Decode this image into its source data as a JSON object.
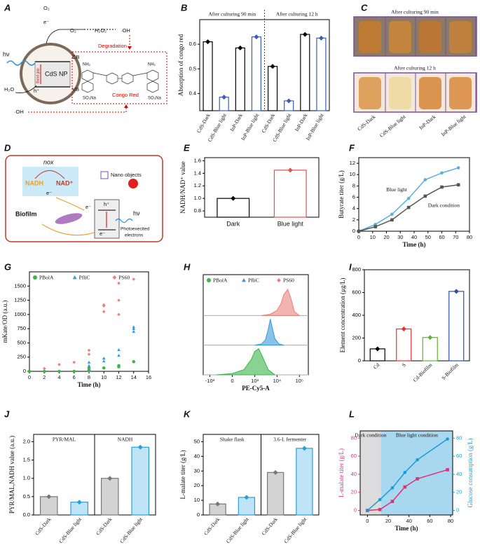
{
  "panel_labels": [
    "A",
    "B",
    "C",
    "D",
    "E",
    "F",
    "G",
    "H",
    "I",
    "J",
    "K",
    "L"
  ],
  "diagram_a": {
    "texts": [
      "O₂",
      "e⁻",
      "O₂⁻",
      "H₂O₂",
      "·OH",
      "hν",
      "CB",
      "CdS NP",
      "VB",
      "h⁺",
      "Band gap",
      "H₂O",
      "·OH",
      "Degradation",
      "Congo Red",
      "NH₂",
      "NH₂",
      "SO₃Na",
      "SO₃Na"
    ]
  },
  "photos_c": {
    "titles": [
      "After culturing 90 min",
      "After culturing 12 h"
    ],
    "labels": [
      "CdS-Dark",
      "CdS-Blue light",
      "InP-Dark",
      "InP-Blue light"
    ]
  },
  "diagram_d": {
    "texts": [
      "nox",
      "NADH",
      "NAD⁺",
      "e⁻",
      "Nano objects",
      "h⁺",
      "e⁻",
      "e⁻",
      "hν",
      "Biofilm",
      "Photoexecited",
      "electrons"
    ]
  },
  "chart_data": [
    {
      "type": "bar",
      "ylabel": "Absorption of congo red",
      "annotations": [
        "After culturing 90 min",
        "After culturing 12 h"
      ],
      "categories": [
        "CdS-Dark",
        "CdS-Blue light",
        "InP-Dark",
        "InP-Blue light",
        "CdS-Dark",
        "CdS-Blue light",
        "InP-Dark",
        "InP-Blue light"
      ],
      "values": [
        0.61,
        0.385,
        0.585,
        0.63,
        0.51,
        0.37,
        0.64,
        0.625
      ],
      "colors": [
        "#ffffff",
        "#ffffff",
        "#ffffff",
        "#ffffff",
        "#ffffff",
        "#ffffff",
        "#ffffff",
        "#ffffff"
      ],
      "edge_colors": [
        "#000000",
        "#3b5db5",
        "#000000",
        "#3b5db5",
        "#000000",
        "#3b5db5",
        "#000000",
        "#3b5db5"
      ],
      "ylim": [
        0.33,
        0.7
      ],
      "yticks": [
        0.4,
        0.5,
        0.6
      ]
    },
    {
      "type": "bar",
      "ylabel": "NADH/NAD⁺ value",
      "categories": [
        "Dark",
        "Blue light"
      ],
      "values": [
        1.0,
        1.45
      ],
      "colors": [
        "#ffffff",
        "#ffffff"
      ],
      "edge_colors": [
        "#000000",
        "#d9534f"
      ],
      "ylim": [
        0.7,
        1.65
      ],
      "yticks": [
        0.8,
        {
          "value": 1,
          "label": "1.0"
        },
        1.2,
        1.4,
        1.6
      ]
    },
    {
      "type": "line",
      "xlabel": "Time (h)",
      "ylabel": "Butyrate titer (g/L)",
      "x": [
        0,
        12,
        24,
        36,
        48,
        60,
        72
      ],
      "series": [
        {
          "name": "Blue light",
          "color": "#5aaee0",
          "values": [
            0,
            1.2,
            3,
            5.8,
            9.1,
            10.3,
            11.2
          ]
        },
        {
          "name": "Dark condition",
          "color": "#555555",
          "values": [
            0,
            0.8,
            2,
            4.2,
            6.2,
            7.8,
            8.2
          ]
        }
      ],
      "xlim": [
        0,
        80
      ],
      "xticks": [
        0,
        10,
        20,
        30,
        40,
        50,
        60,
        70,
        80
      ],
      "ylim": [
        0,
        13
      ],
      "yticks": [
        0,
        2,
        4,
        6,
        8,
        10,
        12
      ]
    },
    {
      "type": "scatter",
      "xlabel": "Time (h)",
      "ylabel": "mKate/OD (a.u.)",
      "series": [
        {
          "name": "PBolA",
          "color": "#3cb44b",
          "x": [
            0,
            2,
            4,
            6,
            8,
            8,
            10,
            12,
            12,
            14
          ],
          "values": [
            0,
            0,
            0,
            0,
            20,
            60,
            60,
            80,
            100,
            170
          ]
        },
        {
          "name": "PfliC",
          "color": "#3a9ad9",
          "x": [
            8,
            8,
            10,
            10,
            12,
            12,
            14,
            14,
            14
          ],
          "values": [
            100,
            160,
            180,
            230,
            280,
            380,
            700,
            750,
            780
          ]
        },
        {
          "name": "PS60",
          "color": "#e8827a",
          "x": [
            2,
            4,
            6,
            8,
            8,
            10,
            10,
            10,
            12,
            12,
            12,
            14
          ],
          "values": [
            50,
            120,
            160,
            300,
            370,
            1050,
            1150,
            1170,
            1000,
            1250,
            1550,
            1620
          ]
        }
      ],
      "xlim": [
        0,
        16
      ],
      "xticks": [
        0,
        2,
        4,
        6,
        8,
        10,
        12,
        14,
        16
      ],
      "ylim": [
        0,
        1750
      ],
      "yticks": [
        0,
        250,
        500,
        750,
        1000,
        1250,
        1500
      ]
    },
    {
      "type": "density",
      "xlabel": "PE-Cy5-A",
      "xscale": "biexponential",
      "xlim": [
        -2000,
        250000
      ],
      "xticks": [
        {
          "value": -1000,
          "label": "-10³"
        },
        0,
        {
          "value": 1000,
          "label": "10³"
        },
        {
          "value": 10000,
          "label": "10⁴"
        },
        {
          "value": 100000,
          "label": "10⁵"
        }
      ],
      "ylim": [
        0,
        100
      ],
      "series": [
        {
          "name": "PBolA",
          "color": "#3cb44b",
          "x": [
            -500,
            0,
            300,
            700,
            1000,
            1500,
            2500,
            4000,
            8000
          ],
          "values": [
            0,
            5,
            20,
            60,
            90,
            100,
            60,
            20,
            0
          ]
        },
        {
          "name": "PfliC",
          "color": "#3a9ad9",
          "x": [
            1000,
            2000,
            3000,
            4000,
            5000,
            6000,
            8000,
            12000,
            20000
          ],
          "values": [
            0,
            5,
            20,
            60,
            100,
            70,
            25,
            5,
            0
          ]
        },
        {
          "name": "PS60",
          "color": "#e8827a",
          "x": [
            2000,
            5000,
            10000,
            15000,
            20000,
            30000,
            40000,
            60000,
            100000
          ],
          "values": [
            0,
            5,
            20,
            45,
            80,
            100,
            70,
            15,
            0
          ]
        }
      ]
    },
    {
      "type": "bar",
      "ylabel": "Element concentration (μg/L)",
      "categories": [
        "Cd",
        "S",
        "Cd-Biofilm",
        "S-Biofilm"
      ],
      "values": [
        105,
        280,
        205,
        610
      ],
      "colors": [
        "#ffffff",
        "#ffffff",
        "#ffffff",
        "#ffffff"
      ],
      "edge_colors": [
        "#000000",
        "#e03030",
        "#5cb82c",
        "#2c4fa8"
      ],
      "ylim": [
        0,
        800
      ],
      "yticks": [
        0,
        200,
        400,
        600,
        800
      ]
    },
    {
      "type": "bar",
      "ylabel": "PYR/MAL,NADH value (a.u.)",
      "annotations": [
        "PYR/MAL",
        "NADH"
      ],
      "categories": [
        "CdS-Dark",
        "CdS-Blue light",
        "CdS-Dark",
        "CdS-Blue light"
      ],
      "values": [
        0.5,
        0.35,
        1.0,
        1.85
      ],
      "colors": [
        "#d3d3d3",
        "#bfe4f6",
        "#d3d3d3",
        "#bfe4f6"
      ],
      "edge_colors": [
        "#777777",
        "#2a9fd6",
        "#777777",
        "#2a9fd6"
      ],
      "ylim": [
        0,
        2.2
      ],
      "yticks": [
        {
          "value": 0,
          "label": "0.0"
        },
        0.5,
        {
          "value": 1,
          "label": "1.0"
        },
        1.5,
        {
          "value": 2,
          "label": "2.0"
        }
      ]
    },
    {
      "type": "bar",
      "ylabel": "L-malate titer (g/L)",
      "annotations": [
        "Shake flask",
        "3.6-L fermenter"
      ],
      "categories": [
        "CdS-Dark",
        "CdS-Blue light",
        "CdS-Dark",
        "CdS-Blue light"
      ],
      "values": [
        7.5,
        12,
        29,
        45.5
      ],
      "colors": [
        "#d3d3d3",
        "#bfe4f6",
        "#d3d3d3",
        "#bfe4f6"
      ],
      "edge_colors": [
        "#777777",
        "#2a9fd6",
        "#777777",
        "#2a9fd6"
      ],
      "ylim": [
        0,
        55
      ],
      "yticks": [
        0,
        10,
        20,
        30,
        40,
        50
      ]
    },
    {
      "type": "line",
      "xlabel": "Time (h)",
      "ylabel": "L-malate titer (g/L)",
      "y2label": "Glucose consumption (g/L)",
      "regions": [
        {
          "label": "Dark condition",
          "range": [
            -7,
            13
          ],
          "color": "#dcdcdc"
        },
        {
          "label": "Blue light condition",
          "range": [
            13,
            82
          ],
          "color": "#a8d8f0"
        }
      ],
      "x": [
        0,
        12,
        24,
        36,
        48,
        77
      ],
      "series": [
        {
          "color": "#e0307a",
          "values": [
            0,
            1,
            10,
            26,
            35,
            45
          ]
        },
        {
          "color": "#1a9ad6",
          "axis": "y2",
          "values": [
            0,
            12,
            25,
            42,
            56,
            79
          ]
        }
      ],
      "xlim": [
        -7,
        82
      ],
      "xticks": [
        0,
        20,
        40,
        60,
        80
      ],
      "ylim": [
        -5,
        88
      ],
      "yticks": [
        0,
        20,
        40,
        60,
        80
      ],
      "y2lim": [
        -5,
        88
      ],
      "y2ticks": [
        0,
        20,
        40,
        60,
        80
      ]
    }
  ]
}
